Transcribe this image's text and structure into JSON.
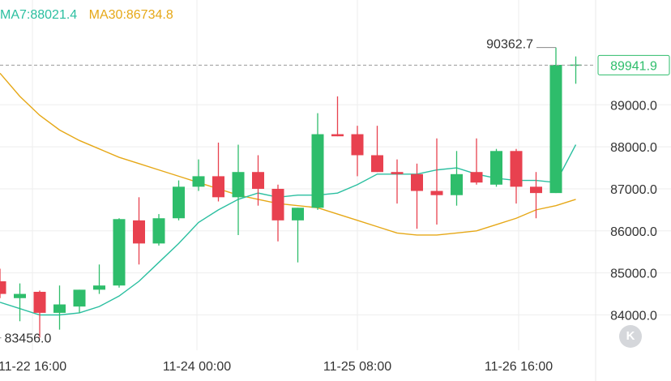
{
  "legend": {
    "ma7": "MA7:88021.4",
    "ma30": "MA30:86734.8"
  },
  "price_tag": "89941.9",
  "high_label": "90362.7",
  "low_label": "83456.0",
  "k_button": "K",
  "colors": {
    "up": "#2ebd6b",
    "down": "#e8414f",
    "ma7": "#2bbfa0",
    "ma30": "#e6a817",
    "price_tag_text": "#2ebd6b",
    "grid": "#eeeeee",
    "axis_text": "#333333"
  },
  "chart_data": {
    "type": "candlestick",
    "interval_hours": 4,
    "grid": true,
    "yaxis": {
      "position": "right",
      "ticks": [
        84000.0,
        85000.0,
        86000.0,
        87000.0,
        88000.0,
        89000.0
      ],
      "tick_labels": [
        "84000.0",
        "85000.0",
        "86000.0",
        "87000.0",
        "88000.0",
        "89000.0"
      ],
      "range": [
        83200,
        90900
      ]
    },
    "xaxis": {
      "tick_labels": [
        "11-22 16:00",
        "11-24 00:00",
        "11-25 08:00",
        "11-26 16:00"
      ]
    },
    "current_price": 89941.9,
    "high": 90362.7,
    "low": 83456.0,
    "candles": [
      {
        "o": 84800,
        "h": 85100,
        "l": 84400,
        "c": 84500
      },
      {
        "o": 84400,
        "h": 84750,
        "l": 83850,
        "c": 84500
      },
      {
        "o": 84550,
        "h": 84580,
        "l": 83460,
        "c": 84050
      },
      {
        "o": 84050,
        "h": 84700,
        "l": 83650,
        "c": 84250
      },
      {
        "o": 84200,
        "h": 84600,
        "l": 84050,
        "c": 84600
      },
      {
        "o": 84600,
        "h": 85200,
        "l": 84500,
        "c": 84700
      },
      {
        "o": 84700,
        "h": 86300,
        "l": 84650,
        "c": 86280
      },
      {
        "o": 86250,
        "h": 86800,
        "l": 85200,
        "c": 85700
      },
      {
        "o": 85700,
        "h": 86400,
        "l": 85650,
        "c": 86300
      },
      {
        "o": 86300,
        "h": 87200,
        "l": 86250,
        "c": 87050
      },
      {
        "o": 87050,
        "h": 87700,
        "l": 86950,
        "c": 87300
      },
      {
        "o": 87300,
        "h": 88100,
        "l": 86700,
        "c": 86800
      },
      {
        "o": 86800,
        "h": 88050,
        "l": 85900,
        "c": 87400
      },
      {
        "o": 87400,
        "h": 87800,
        "l": 86600,
        "c": 87000
      },
      {
        "o": 87000,
        "h": 87100,
        "l": 85750,
        "c": 86250
      },
      {
        "o": 86250,
        "h": 86550,
        "l": 85250,
        "c": 86550
      },
      {
        "o": 86550,
        "h": 88800,
        "l": 86500,
        "c": 88300
      },
      {
        "o": 88300,
        "h": 89200,
        "l": 88250,
        "c": 88250
      },
      {
        "o": 88300,
        "h": 88500,
        "l": 87300,
        "c": 87800
      },
      {
        "o": 87800,
        "h": 88500,
        "l": 87400,
        "c": 87400
      },
      {
        "o": 87400,
        "h": 87700,
        "l": 86650,
        "c": 87350
      },
      {
        "o": 87350,
        "h": 87600,
        "l": 86050,
        "c": 86950
      },
      {
        "o": 86950,
        "h": 88200,
        "l": 86150,
        "c": 86850
      },
      {
        "o": 86850,
        "h": 87900,
        "l": 86600,
        "c": 87350
      },
      {
        "o": 87400,
        "h": 88200,
        "l": 87100,
        "c": 87150
      },
      {
        "o": 87100,
        "h": 87950,
        "l": 87050,
        "c": 87900
      },
      {
        "o": 87900,
        "h": 87950,
        "l": 86650,
        "c": 87050
      },
      {
        "o": 87050,
        "h": 87400,
        "l": 86300,
        "c": 86900
      },
      {
        "o": 86900,
        "h": 90362.7,
        "l": 86900,
        "c": 89950
      },
      {
        "o": 89941.9,
        "h": 90150,
        "l": 89500,
        "c": 89941.9
      }
    ],
    "ma7": [
      84300,
      84150,
      84000,
      84000,
      84050,
      84200,
      84450,
      84800,
      85250,
      85700,
      86200,
      86500,
      86750,
      86900,
      86800,
      86850,
      86850,
      86900,
      87100,
      87350,
      87350,
      87350,
      87450,
      87500,
      87350,
      87250,
      87200,
      87200,
      87150,
      88050
    ],
    "ma30": [
      89750,
      89200,
      88750,
      88400,
      88150,
      87950,
      87750,
      87600,
      87450,
      87300,
      87150,
      87000,
      86850,
      86750,
      86650,
      86600,
      86550,
      86400,
      86250,
      86100,
      85950,
      85900,
      85900,
      85950,
      86000,
      86150,
      86300,
      86500,
      86600,
      86750
    ]
  }
}
